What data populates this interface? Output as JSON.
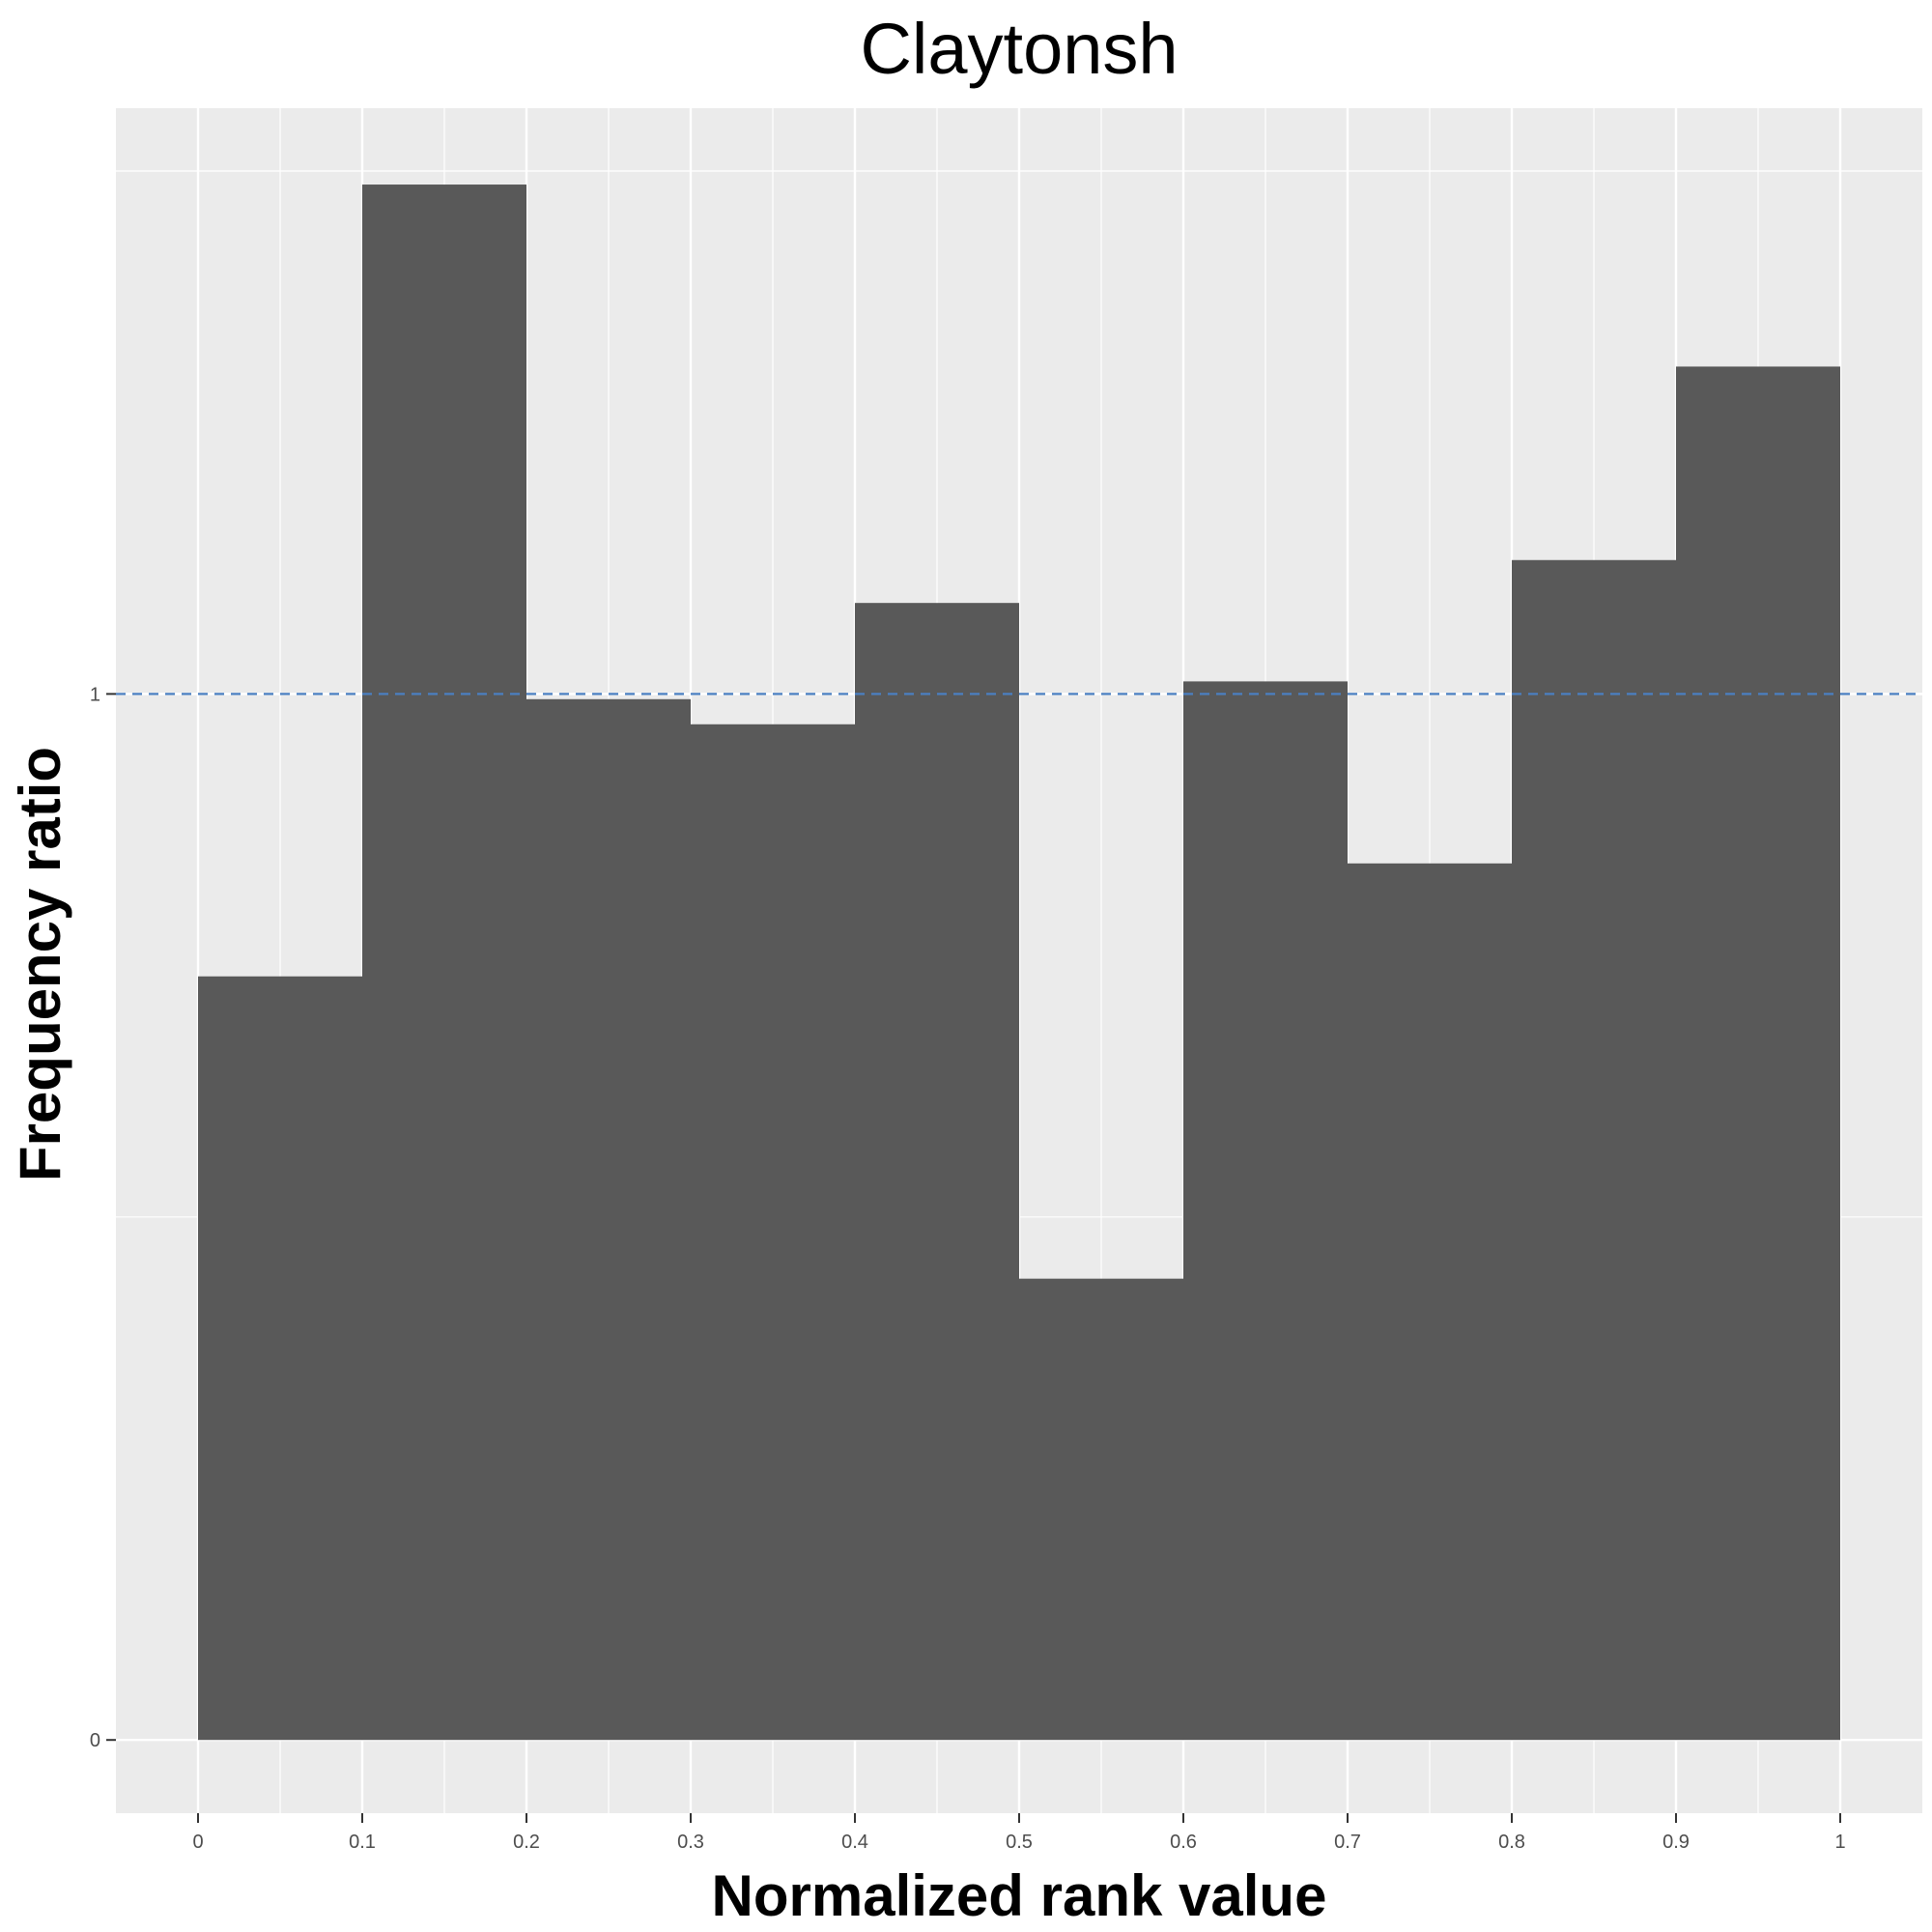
{
  "chart_data": {
    "type": "bar",
    "title": "Claytonsh",
    "xlabel": "Normalized rank value",
    "ylabel": "Frequency ratio",
    "bin_edges": [
      0,
      0.1,
      0.2,
      0.3,
      0.4,
      0.5,
      0.6,
      0.7,
      0.8,
      0.9,
      1
    ],
    "values": [
      0.73,
      1.487,
      0.995,
      0.971,
      1.087,
      0.441,
      1.012,
      0.838,
      1.128,
      1.313
    ],
    "xlim": [
      -0.05,
      1.05
    ],
    "ylim": [
      -0.07,
      1.56
    ],
    "x_ticks": [
      0,
      0.1,
      0.2,
      0.3,
      0.4,
      0.5,
      0.6,
      0.7,
      0.8,
      0.9,
      1
    ],
    "x_tick_labels": [
      "0",
      "0.1",
      "0.2",
      "0.3",
      "0.4",
      "0.5",
      "0.6",
      "0.7",
      "0.8",
      "0.9",
      "1"
    ],
    "y_ticks": [
      0,
      1
    ],
    "y_tick_labels": [
      "0",
      "1"
    ],
    "reference_line": {
      "y": 1,
      "style": "dashed",
      "color": "#4a7fc1"
    },
    "grid": true,
    "colors": {
      "bar": "#595959",
      "panel": "#ebebeb",
      "grid": "#ffffff"
    }
  }
}
